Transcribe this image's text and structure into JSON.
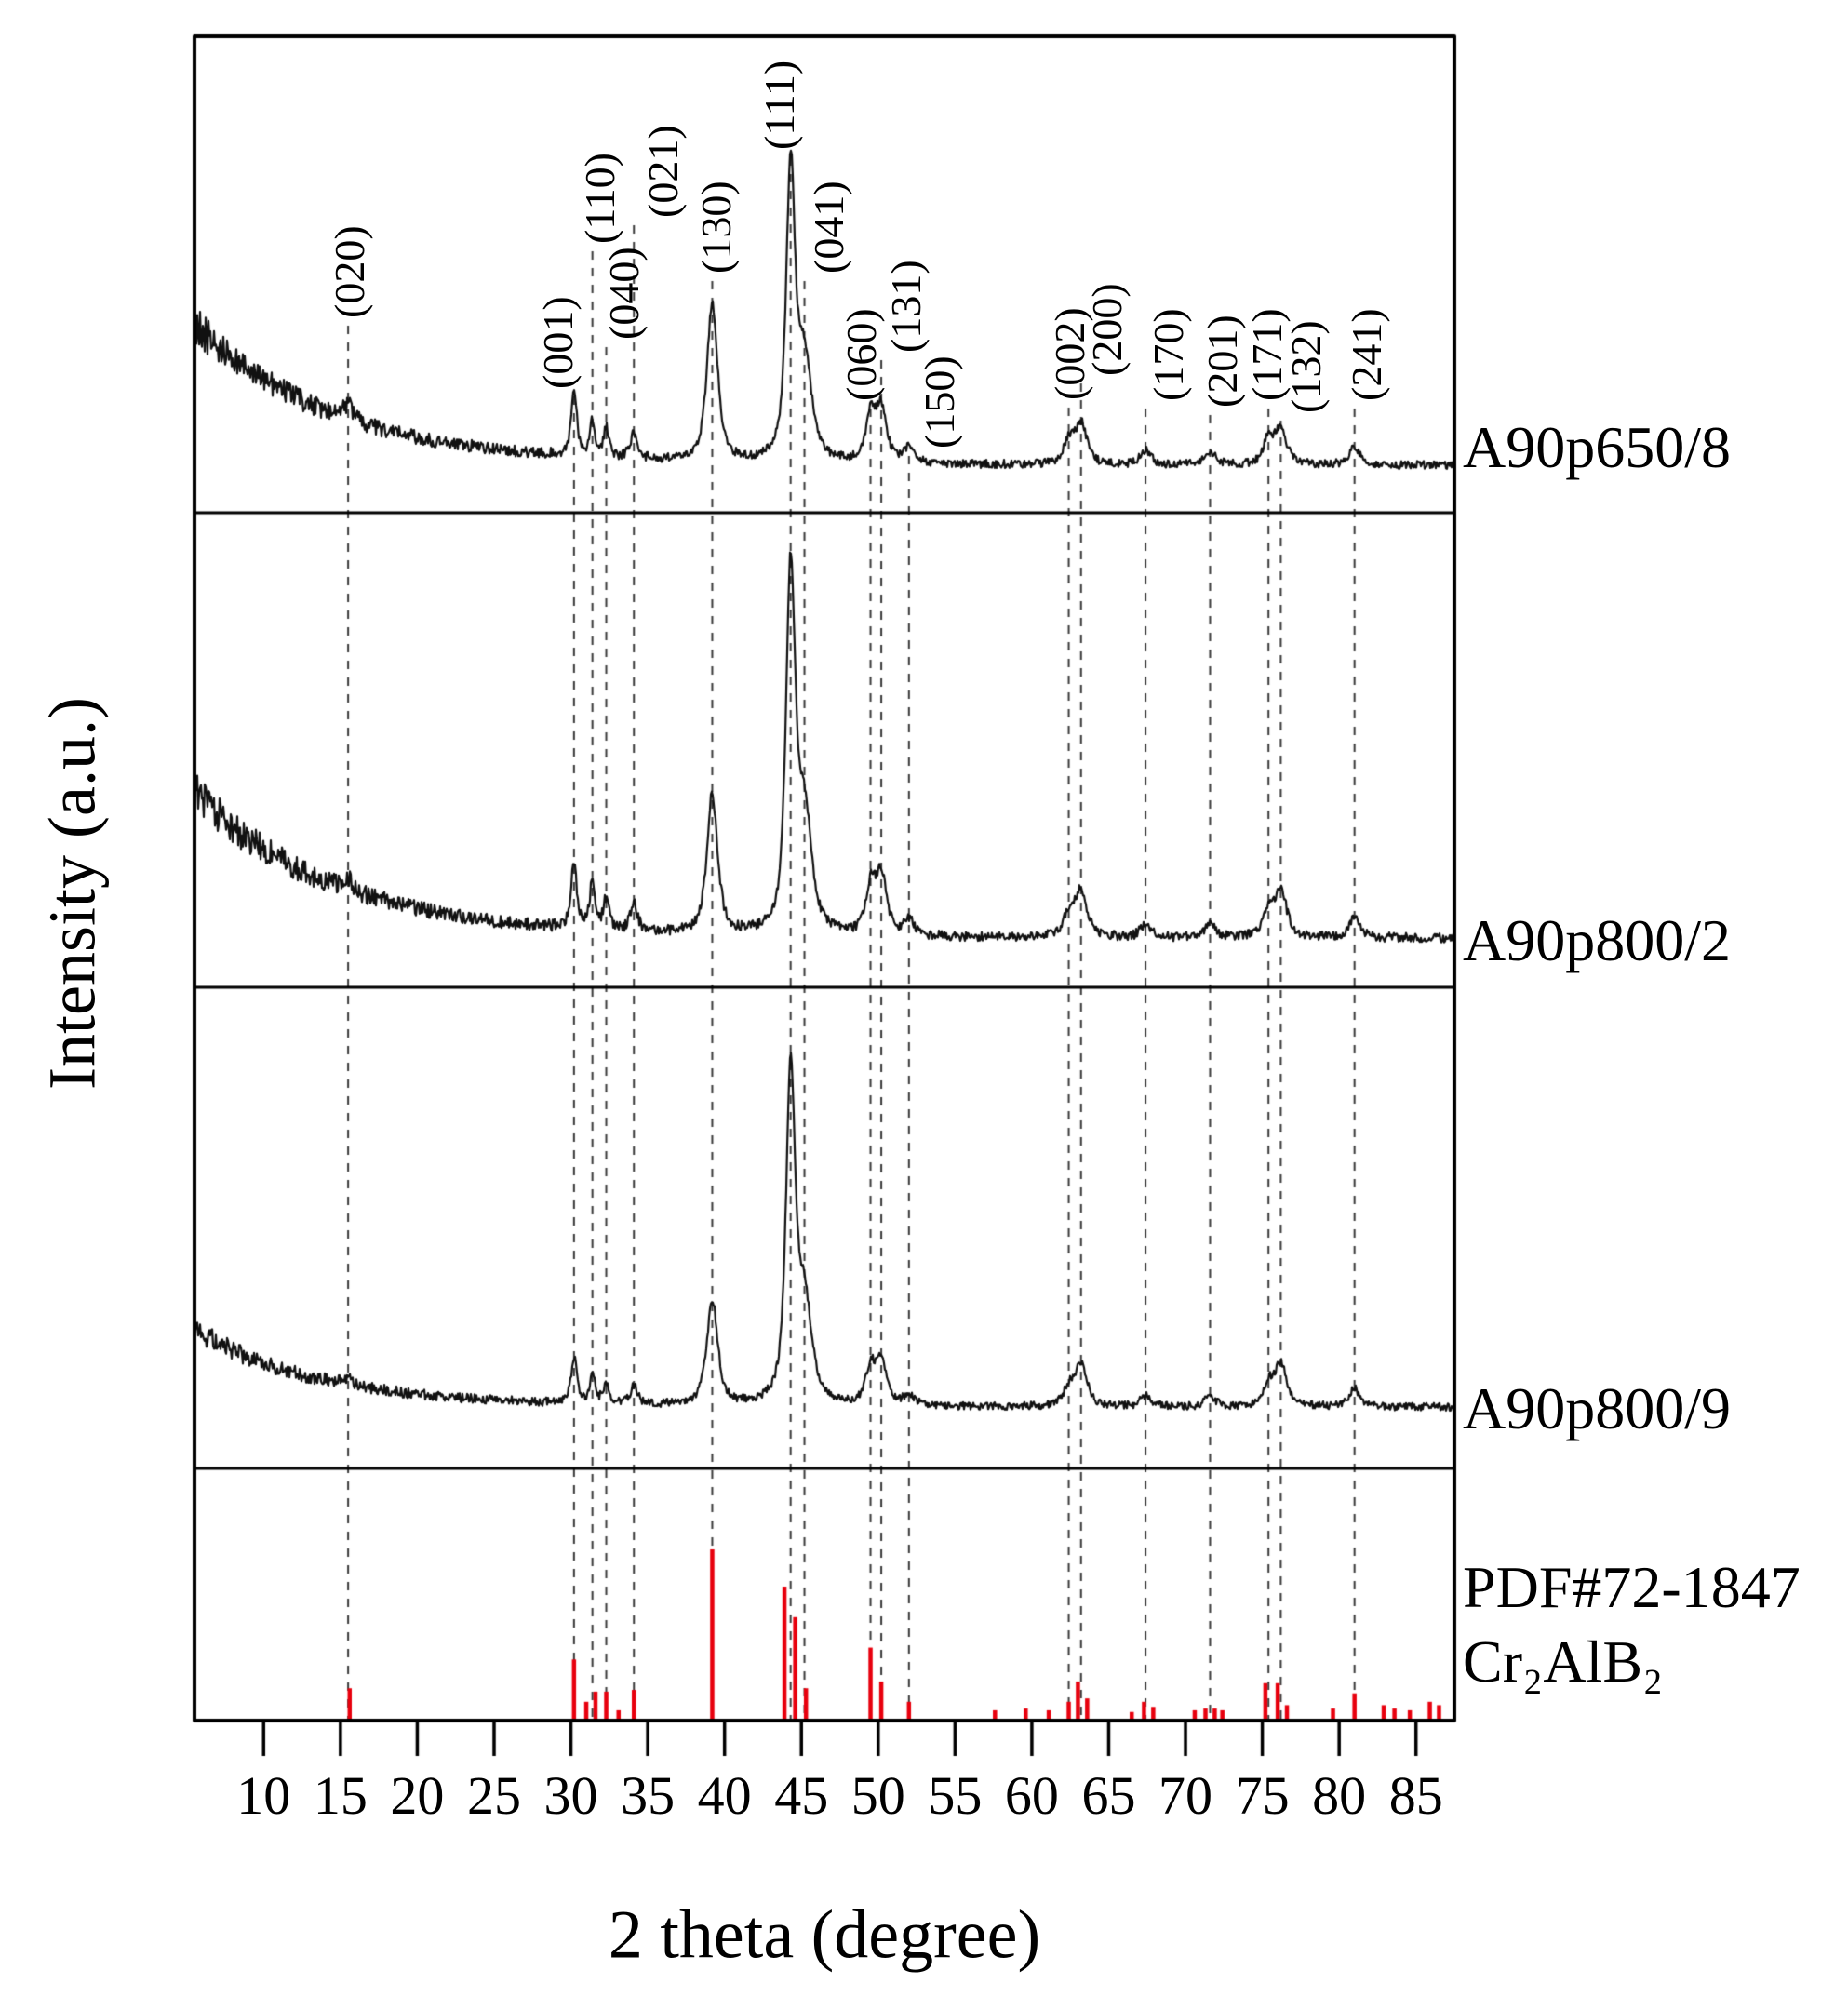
{
  "chart_data": {
    "type": "line",
    "title": "",
    "xlabel": "2 theta (degree)",
    "ylabel": "Intensity (a.u.)",
    "x_range": [
      5.5,
      87.5
    ],
    "x_ticks": [
      10,
      15,
      20,
      25,
      30,
      35,
      40,
      45,
      50,
      55,
      60,
      65,
      70,
      75,
      80,
      85
    ],
    "grid": false,
    "legend_position": "right",
    "curve_color": "#111111",
    "reference_color": "#e8000d",
    "guide_line_color": "#3a3a3a",
    "series": [
      {
        "name": "A90p650/8",
        "background": {
          "amplitude": 0.45,
          "tau": 9.0
        },
        "noise": {
          "base": 0.013,
          "background_scaled": 0.11
        },
        "peaks": [
          {
            "x": 15.5,
            "h": 0.045,
            "w": 0.35
          },
          {
            "x": 30.2,
            "h": 0.22,
            "w": 0.22
          },
          {
            "x": 31.4,
            "h": 0.11,
            "w": 0.22
          },
          {
            "x": 32.3,
            "h": 0.09,
            "w": 0.22
          },
          {
            "x": 34.1,
            "h": 0.08,
            "w": 0.28
          },
          {
            "x": 39.2,
            "h": 0.5,
            "w": 0.42
          },
          {
            "x": 44.3,
            "h": 0.93,
            "w": 0.34
          },
          {
            "x": 45.2,
            "h": 0.32,
            "w": 0.55
          },
          {
            "x": 49.5,
            "h": 0.14,
            "w": 0.38
          },
          {
            "x": 50.2,
            "h": 0.17,
            "w": 0.42
          },
          {
            "x": 52.0,
            "h": 0.05,
            "w": 0.4
          },
          {
            "x": 62.4,
            "h": 0.07,
            "w": 0.4
          },
          {
            "x": 63.2,
            "h": 0.13,
            "w": 0.45
          },
          {
            "x": 67.4,
            "h": 0.045,
            "w": 0.4
          },
          {
            "x": 71.6,
            "h": 0.045,
            "w": 0.4
          },
          {
            "x": 75.4,
            "h": 0.08,
            "w": 0.4
          },
          {
            "x": 76.2,
            "h": 0.11,
            "w": 0.45
          },
          {
            "x": 81.0,
            "h": 0.055,
            "w": 0.45
          }
        ]
      },
      {
        "name": "A90p800/2",
        "background": {
          "amplitude": 0.38,
          "tau": 9.0
        },
        "noise": {
          "base": 0.012,
          "background_scaled": 0.11
        },
        "peaks": [
          {
            "x": 15.5,
            "h": 0.03,
            "w": 0.35
          },
          {
            "x": 30.2,
            "h": 0.17,
            "w": 0.22
          },
          {
            "x": 31.4,
            "h": 0.12,
            "w": 0.22
          },
          {
            "x": 32.3,
            "h": 0.08,
            "w": 0.22
          },
          {
            "x": 34.1,
            "h": 0.07,
            "w": 0.28
          },
          {
            "x": 39.2,
            "h": 0.36,
            "w": 0.42
          },
          {
            "x": 44.3,
            "h": 0.93,
            "w": 0.36
          },
          {
            "x": 45.2,
            "h": 0.3,
            "w": 0.55
          },
          {
            "x": 49.5,
            "h": 0.12,
            "w": 0.38
          },
          {
            "x": 50.2,
            "h": 0.15,
            "w": 0.42
          },
          {
            "x": 52.0,
            "h": 0.04,
            "w": 0.4
          },
          {
            "x": 62.4,
            "h": 0.06,
            "w": 0.4
          },
          {
            "x": 63.2,
            "h": 0.12,
            "w": 0.45
          },
          {
            "x": 67.4,
            "h": 0.035,
            "w": 0.4
          },
          {
            "x": 71.6,
            "h": 0.04,
            "w": 0.4
          },
          {
            "x": 75.4,
            "h": 0.07,
            "w": 0.4
          },
          {
            "x": 76.2,
            "h": 0.12,
            "w": 0.45
          },
          {
            "x": 81.0,
            "h": 0.05,
            "w": 0.45
          }
        ]
      },
      {
        "name": "A90p800/9",
        "background": {
          "amplitude": 0.22,
          "tau": 8.0
        },
        "noise": {
          "base": 0.011,
          "background_scaled": 0.1
        },
        "peaks": [
          {
            "x": 15.5,
            "h": 0.02,
            "w": 0.35
          },
          {
            "x": 30.2,
            "h": 0.13,
            "w": 0.22
          },
          {
            "x": 31.4,
            "h": 0.08,
            "w": 0.22
          },
          {
            "x": 32.3,
            "h": 0.06,
            "w": 0.22
          },
          {
            "x": 34.1,
            "h": 0.05,
            "w": 0.28
          },
          {
            "x": 39.2,
            "h": 0.3,
            "w": 0.42
          },
          {
            "x": 44.3,
            "h": 0.93,
            "w": 0.36
          },
          {
            "x": 45.2,
            "h": 0.28,
            "w": 0.55
          },
          {
            "x": 49.5,
            "h": 0.1,
            "w": 0.38
          },
          {
            "x": 50.2,
            "h": 0.12,
            "w": 0.42
          },
          {
            "x": 52.0,
            "h": 0.03,
            "w": 0.4
          },
          {
            "x": 62.4,
            "h": 0.05,
            "w": 0.4
          },
          {
            "x": 63.2,
            "h": 0.12,
            "w": 0.45
          },
          {
            "x": 67.4,
            "h": 0.03,
            "w": 0.4
          },
          {
            "x": 71.6,
            "h": 0.03,
            "w": 0.4
          },
          {
            "x": 75.4,
            "h": 0.06,
            "w": 0.4
          },
          {
            "x": 76.2,
            "h": 0.12,
            "w": 0.45
          },
          {
            "x": 81.0,
            "h": 0.05,
            "w": 0.45
          }
        ]
      }
    ],
    "reference": {
      "label_line1": "PDF#72-1847",
      "label_line2": "Cr₂AlB₂",
      "sticks": [
        {
          "x": 15.6,
          "h": 0.18
        },
        {
          "x": 30.2,
          "h": 0.35
        },
        {
          "x": 31.0,
          "h": 0.1
        },
        {
          "x": 31.6,
          "h": 0.16
        },
        {
          "x": 32.3,
          "h": 0.16
        },
        {
          "x": 33.1,
          "h": 0.05
        },
        {
          "x": 34.1,
          "h": 0.17
        },
        {
          "x": 39.2,
          "h": 1.0
        },
        {
          "x": 43.9,
          "h": 0.78
        },
        {
          "x": 44.6,
          "h": 0.6
        },
        {
          "x": 45.3,
          "h": 0.18
        },
        {
          "x": 49.5,
          "h": 0.42
        },
        {
          "x": 50.2,
          "h": 0.22
        },
        {
          "x": 52.0,
          "h": 0.1
        },
        {
          "x": 57.6,
          "h": 0.05
        },
        {
          "x": 59.6,
          "h": 0.06
        },
        {
          "x": 61.1,
          "h": 0.05
        },
        {
          "x": 62.4,
          "h": 0.1
        },
        {
          "x": 63.0,
          "h": 0.22
        },
        {
          "x": 63.6,
          "h": 0.12
        },
        {
          "x": 66.5,
          "h": 0.04
        },
        {
          "x": 67.3,
          "h": 0.1
        },
        {
          "x": 67.9,
          "h": 0.07
        },
        {
          "x": 70.6,
          "h": 0.05
        },
        {
          "x": 71.3,
          "h": 0.06
        },
        {
          "x": 71.9,
          "h": 0.06
        },
        {
          "x": 72.4,
          "h": 0.05
        },
        {
          "x": 75.2,
          "h": 0.21
        },
        {
          "x": 76.0,
          "h": 0.21
        },
        {
          "x": 76.6,
          "h": 0.08
        },
        {
          "x": 79.6,
          "h": 0.06
        },
        {
          "x": 81.0,
          "h": 0.15
        },
        {
          "x": 82.9,
          "h": 0.08
        },
        {
          "x": 83.6,
          "h": 0.06
        },
        {
          "x": 84.6,
          "h": 0.05
        },
        {
          "x": 85.9,
          "h": 0.1
        },
        {
          "x": 86.5,
          "h": 0.08
        }
      ]
    },
    "peak_annotations": [
      {
        "label": "(020)",
        "x": 15.5,
        "lx": 15.6
      },
      {
        "label": "(001)",
        "x": 30.2,
        "lx": 29.2
      },
      {
        "label": "(110)",
        "x": 31.4,
        "lx": 31.9
      },
      {
        "label": "(040)",
        "x": 32.3,
        "lx": 33.5
      },
      {
        "label": "(021)",
        "x": 34.1,
        "lx": 36.0
      },
      {
        "label": "(130)",
        "x": 39.2,
        "lx": 39.5
      },
      {
        "label": "(111)",
        "x": 44.3,
        "lx": 43.6
      },
      {
        "label": "(041)",
        "x": 45.2,
        "lx": 46.8
      },
      {
        "label": "(060)",
        "x": 49.5,
        "lx": 48.9
      },
      {
        "label": "(131)",
        "x": 50.2,
        "lx": 51.8
      },
      {
        "label": "(150)",
        "x": 52.0,
        "lx": 54.0
      },
      {
        "label": "(002)",
        "x": 62.4,
        "lx": 62.5
      },
      {
        "label": "(200)",
        "x": 63.2,
        "lx": 64.9
      },
      {
        "label": "(170)",
        "x": 67.4,
        "lx": 68.9
      },
      {
        "label": "(201)",
        "x": 71.6,
        "lx": 72.4
      },
      {
        "label": "(171)",
        "x": 75.4,
        "lx": 75.3
      },
      {
        "label": "(132)",
        "x": 76.2,
        "lx": 77.9
      },
      {
        "label": "(241)",
        "x": 81.0,
        "lx": 81.8
      }
    ]
  }
}
